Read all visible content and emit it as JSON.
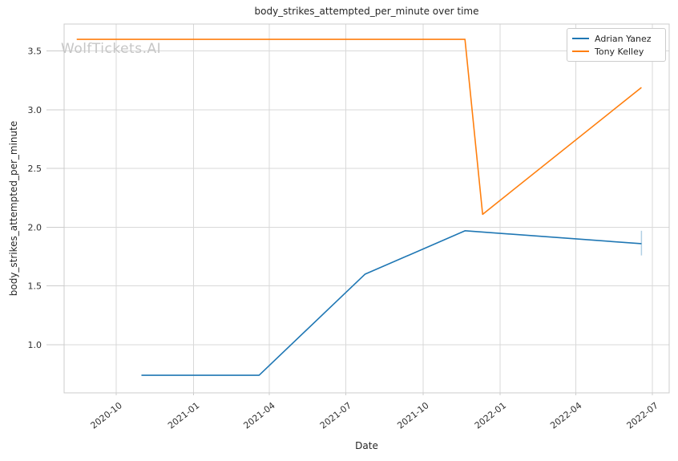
{
  "watermark": "WolfTickets.AI",
  "chart_data": {
    "type": "line",
    "title": "body_strikes_attempted_per_minute over time",
    "xlabel": "Date",
    "ylabel": "body_strikes_attempted_per_minute",
    "grid": true,
    "legend_position": "upper right",
    "xlim": [
      "2020-07-31",
      "2022-07-21"
    ],
    "ylim": [
      0.59,
      3.73
    ],
    "x_ticks": [
      {
        "date": "2020-10-01",
        "label": "2020-10"
      },
      {
        "date": "2021-01-01",
        "label": "2021-01"
      },
      {
        "date": "2021-04-01",
        "label": "2021-04"
      },
      {
        "date": "2021-07-01",
        "label": "2021-07"
      },
      {
        "date": "2021-10-01",
        "label": "2021-10"
      },
      {
        "date": "2022-01-01",
        "label": "2022-01"
      },
      {
        "date": "2022-04-01",
        "label": "2022-04"
      },
      {
        "date": "2022-07-01",
        "label": "2022-07"
      }
    ],
    "y_ticks": [
      1.0,
      1.5,
      2.0,
      2.5,
      3.0,
      3.5
    ],
    "series": [
      {
        "name": "Adrian Yanez",
        "color": "#1f77b4",
        "x": [
          "2020-10-31",
          "2021-03-20",
          "2021-07-24",
          "2021-11-20",
          "2022-06-18"
        ],
        "values": [
          0.74,
          0.74,
          1.6,
          1.97,
          1.86
        ],
        "last_point_error_bar": {
          "low": 1.76,
          "high": 1.97
        }
      },
      {
        "name": "Tony Kelley",
        "color": "#ff7f0e",
        "x": [
          "2020-08-15",
          "2021-11-20",
          "2021-12-11",
          "2022-06-18"
        ],
        "values": [
          3.6,
          3.6,
          2.11,
          3.19
        ]
      }
    ],
    "style": {
      "grid_color": "#d9d9d9",
      "border_color": "#cccccc",
      "tick_label_color": "#303030",
      "watermark_color": "#c6c6c6"
    }
  }
}
